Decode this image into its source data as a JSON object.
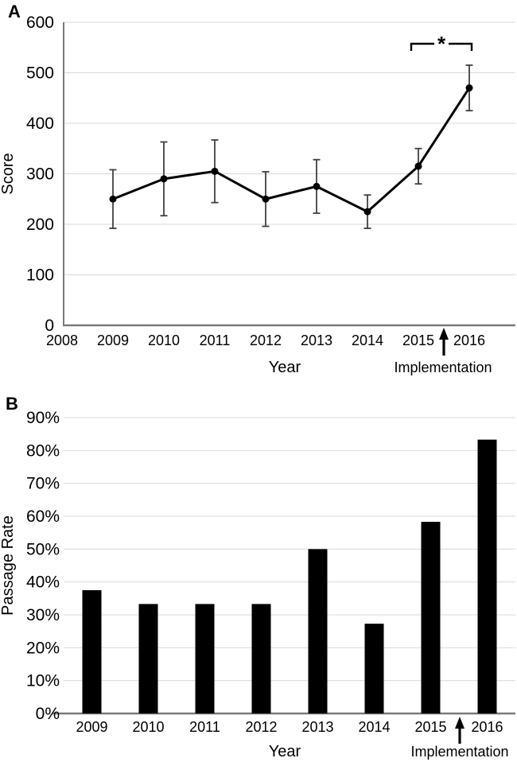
{
  "figure": {
    "panels": [
      {
        "letter": "A"
      },
      {
        "letter": "B"
      }
    ]
  },
  "style": {
    "series_color": "#000000",
    "error_bar_color": "#404040",
    "gridline_color": "#d9d9d9",
    "axis_color": "#7a7a7a",
    "text_color": "#000000",
    "bar_color": "#000000"
  },
  "chart_data": [
    {
      "type": "line",
      "panel": "A",
      "title": "",
      "xlabel": "Year",
      "ylabel": "Score",
      "x": [
        2009,
        2010,
        2011,
        2012,
        2013,
        2014,
        2015,
        2016
      ],
      "values": [
        250,
        290,
        305,
        250,
        275,
        225,
        315,
        470
      ],
      "error": [
        58,
        73,
        62,
        54,
        53,
        33,
        35,
        45
      ],
      "ylim": [
        0,
        600
      ],
      "yticks": [
        0,
        100,
        200,
        300,
        400,
        500,
        600
      ],
      "xticks": [
        2008,
        2009,
        2010,
        2011,
        2012,
        2013,
        2014,
        2015,
        2016
      ],
      "x_axis_min": 2008,
      "grid": true,
      "legend": false,
      "marker": "circle",
      "annotations": {
        "significance_bracket": {
          "from": 2015,
          "to": 2016,
          "label": "*"
        },
        "implementation_arrow": {
          "x": 2015.5,
          "label": "Implementation"
        }
      }
    },
    {
      "type": "bar",
      "panel": "B",
      "title": "",
      "xlabel": "Year",
      "ylabel": "Passage Rate",
      "categories": [
        "2009",
        "2010",
        "2011",
        "2012",
        "2013",
        "2014",
        "2015",
        "2016"
      ],
      "values": [
        37.5,
        33.3,
        33.3,
        33.3,
        50.0,
        27.3,
        58.3,
        83.3
      ],
      "unit": "%",
      "ylim": [
        0,
        90
      ],
      "yticks": [
        0,
        10,
        20,
        30,
        40,
        50,
        60,
        70,
        80,
        90
      ],
      "ytick_labels": [
        "0%",
        "10%",
        "20%",
        "30%",
        "40%",
        "50%",
        "60%",
        "70%",
        "80%",
        "90%"
      ],
      "grid": true,
      "legend": false,
      "annotations": {
        "implementation_arrow": {
          "between": [
            "2015",
            "2016"
          ],
          "label": "Implementation"
        }
      }
    }
  ]
}
